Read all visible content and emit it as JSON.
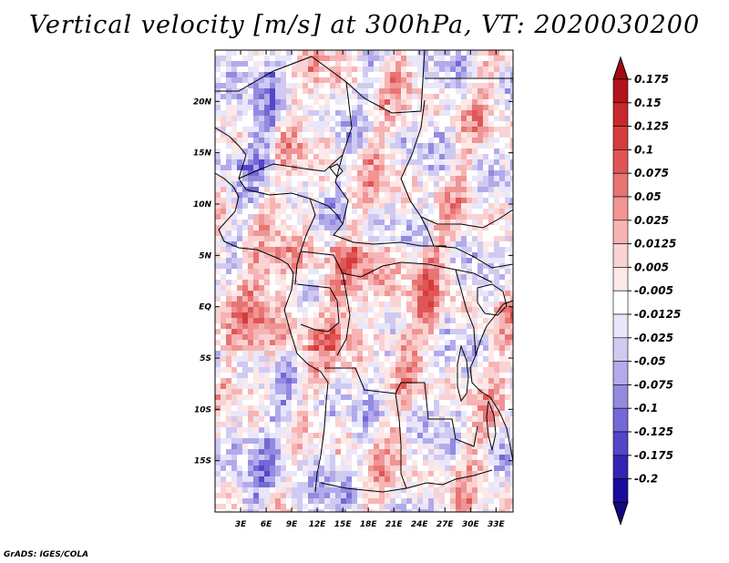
{
  "title": "Vertical velocity [m/s] at 300hPa, VT: 2020030200",
  "credit": "GrADS: IGES/COLA",
  "map": {
    "variable": "Vertical velocity",
    "units": "m/s",
    "level": "300hPa",
    "valid_time": "2020030200",
    "lat_labels": [
      "20N",
      "15N",
      "10N",
      "5N",
      "EQ",
      "5S",
      "10S",
      "15S"
    ],
    "lon_labels": [
      "3E",
      "6E",
      "9E",
      "12E",
      "15E",
      "18E",
      "21E",
      "24E",
      "27E",
      "30E",
      "33E"
    ],
    "lat_values": [
      20,
      15,
      10,
      5,
      0,
      -5,
      -10,
      -15
    ],
    "lon_values": [
      3,
      6,
      9,
      12,
      15,
      18,
      21,
      24,
      27,
      30,
      33
    ],
    "extent": {
      "lon_min": 0,
      "lon_max": 35,
      "lat_min": -20,
      "lat_max": 25
    }
  },
  "colorbar": {
    "labels": [
      "0.175",
      "0.15",
      "0.125",
      "0.1",
      "0.075",
      "0.05",
      "0.025",
      "0.0125",
      "0.005",
      "-0.005",
      "-0.0125",
      "-0.025",
      "-0.05",
      "-0.075",
      "-0.1",
      "-0.125",
      "-0.175",
      "-0.2"
    ],
    "colors": [
      "#b2141c",
      "#c8282c",
      "#d63c3c",
      "#e05656",
      "#e87474",
      "#f09494",
      "#f6b4b4",
      "#fad2d2",
      "#fde8e8",
      "#ffffff",
      "#e8e6fa",
      "#cfcaf2",
      "#b2aaea",
      "#938ae0",
      "#7468d6",
      "#5446c8",
      "#3424b4",
      "#1a0c9a"
    ],
    "top_arrow_color": "#a30a14",
    "bottom_arrow_color": "#120880"
  }
}
